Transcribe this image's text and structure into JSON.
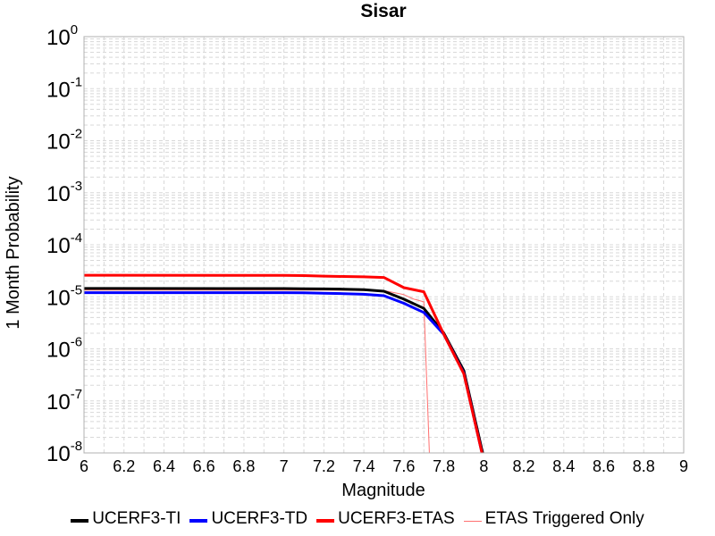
{
  "chart_data": {
    "type": "line",
    "title": "Sisar",
    "xlabel": "Magnitude",
    "ylabel": "1 Month Probability",
    "xlim": [
      6,
      9
    ],
    "ylim": [
      1e-08,
      1
    ],
    "yscale": "log",
    "grid": true,
    "legend_position": "bottom",
    "x_ticks": [
      "6",
      "6.2",
      "6.4",
      "6.6",
      "6.8",
      "7",
      "7.2",
      "7.4",
      "7.6",
      "7.8",
      "8",
      "8.2",
      "8.4",
      "8.6",
      "8.8",
      "9"
    ],
    "y_ticks": [
      {
        "base": "10",
        "exp": "-8",
        "value": 1e-08
      },
      {
        "base": "10",
        "exp": "-7",
        "value": 1e-07
      },
      {
        "base": "10",
        "exp": "-6",
        "value": 1e-06
      },
      {
        "base": "10",
        "exp": "-5",
        "value": 1e-05
      },
      {
        "base": "10",
        "exp": "-4",
        "value": 0.0001
      },
      {
        "base": "10",
        "exp": "-3",
        "value": 0.001
      },
      {
        "base": "10",
        "exp": "-2",
        "value": 0.01
      },
      {
        "base": "10",
        "exp": "-1",
        "value": 0.1
      },
      {
        "base": "10",
        "exp": "0",
        "value": 1
      }
    ],
    "series": [
      {
        "name": "UCERF3-TI",
        "color": "#000000",
        "width": 3,
        "x": [
          6.0,
          7.0,
          7.1,
          7.2,
          7.3,
          7.4,
          7.5,
          7.6,
          7.7,
          7.8,
          7.9,
          8.0
        ],
        "y": [
          1.45e-05,
          1.44e-05,
          1.43e-05,
          1.42e-05,
          1.4e-05,
          1.37e-05,
          1.28e-05,
          9e-06,
          6e-06,
          2e-06,
          3.8e-07,
          8e-09
        ]
      },
      {
        "name": "UCERF3-TD",
        "color": "#0000ff",
        "width": 3,
        "x": [
          6.0,
          7.0,
          7.1,
          7.2,
          7.3,
          7.4,
          7.5,
          7.6,
          7.7,
          7.8,
          7.9,
          8.0
        ],
        "y": [
          1.2e-05,
          1.2e-05,
          1.19e-05,
          1.17e-05,
          1.15e-05,
          1.12e-05,
          1.05e-05,
          7.5e-06,
          5e-06,
          1.9e-06,
          3.4e-07,
          7e-09
        ]
      },
      {
        "name": "UCERF3-ETAS",
        "color": "#ff0000",
        "width": 3,
        "x": [
          6.0,
          7.0,
          7.1,
          7.2,
          7.3,
          7.4,
          7.5,
          7.6,
          7.7,
          7.8,
          7.9,
          8.0
        ],
        "y": [
          2.6e-05,
          2.58e-05,
          2.56e-05,
          2.5e-05,
          2.46e-05,
          2.42e-05,
          2.35e-05,
          1.5e-05,
          1.25e-05,
          1.9e-06,
          3.3e-07,
          7e-09
        ]
      },
      {
        "name": "ETAS Triggered Only",
        "color": "#ff7070",
        "width": 1,
        "x": [
          6.0,
          7.0,
          7.1,
          7.2,
          7.3,
          7.4,
          7.5,
          7.6,
          7.65,
          7.7,
          7.73
        ],
        "y": [
          1.35e-05,
          1.34e-05,
          1.34e-05,
          1.34e-05,
          1.33e-05,
          1.32e-05,
          1.32e-05,
          1.1e-05,
          9e-06,
          8e-06,
          6e-09
        ]
      }
    ]
  }
}
